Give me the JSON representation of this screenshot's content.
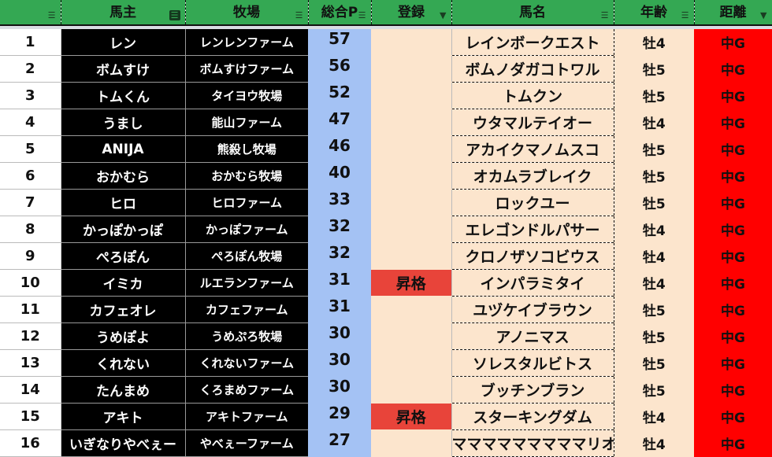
{
  "headers": [
    "",
    "馬主",
    "牧場",
    "総合P",
    "登録",
    "馬名",
    "年齢",
    "距離"
  ],
  "colors": {
    "header": "#34a853",
    "points": "#a4c2f4",
    "peach": "#fce5cd",
    "distance": "#ff0000",
    "promoted": "#e8443a"
  },
  "rows": [
    {
      "n": "1",
      "owner": "レン",
      "farm": "レンレンファーム",
      "pts": "57",
      "reg": "",
      "horse": "レインボークエスト",
      "age": "牡4",
      "dist": "中G"
    },
    {
      "n": "2",
      "owner": "ボムすけ",
      "farm": "ボムすけファーム",
      "pts": "56",
      "reg": "",
      "horse": "ボムノダガコトワル",
      "age": "牡5",
      "dist": "中G"
    },
    {
      "n": "3",
      "owner": "トムくん",
      "farm": "タイヨウ牧場",
      "pts": "52",
      "reg": "",
      "horse": "トムクン",
      "age": "牡5",
      "dist": "中G"
    },
    {
      "n": "4",
      "owner": "うまし",
      "farm": "能山ファーム",
      "pts": "47",
      "reg": "",
      "horse": "ウタマルテイオー",
      "age": "牡4",
      "dist": "中G"
    },
    {
      "n": "5",
      "owner": "ANIJA",
      "farm": "熊殺し牧場",
      "pts": "46",
      "reg": "",
      "horse": "アカイクマノムスコ",
      "age": "牡5",
      "dist": "中G"
    },
    {
      "n": "6",
      "owner": "おかむら",
      "farm": "おかむら牧場",
      "pts": "40",
      "reg": "",
      "horse": "オカムラブレイク",
      "age": "牡5",
      "dist": "中G"
    },
    {
      "n": "7",
      "owner": "ヒロ",
      "farm": "ヒロファーム",
      "pts": "33",
      "reg": "",
      "horse": "ロックユー",
      "age": "牡5",
      "dist": "中G"
    },
    {
      "n": "8",
      "owner": "かっぽかっぽ",
      "farm": "かっぽファーム",
      "pts": "32",
      "reg": "",
      "horse": "エレゴンドルパサー",
      "age": "牡4",
      "dist": "中G"
    },
    {
      "n": "9",
      "owner": "ぺろぽん",
      "farm": "ぺろぽん牧場",
      "pts": "32",
      "reg": "",
      "horse": "クロノザソコビウス",
      "age": "牡4",
      "dist": "中G"
    },
    {
      "n": "10",
      "owner": "イミカ",
      "farm": "ルエランファーム",
      "pts": "31",
      "reg": "昇格",
      "horse": "インパラミタイ",
      "age": "牡4",
      "dist": "中G"
    },
    {
      "n": "11",
      "owner": "カフェオレ",
      "farm": "カフェファーム",
      "pts": "31",
      "reg": "",
      "horse": "ユヅケイブラウン",
      "age": "牡5",
      "dist": "中G"
    },
    {
      "n": "12",
      "owner": "うめぽよ",
      "farm": "うめぷろ牧場",
      "pts": "30",
      "reg": "",
      "horse": "アノニマス",
      "age": "牡5",
      "dist": "中G"
    },
    {
      "n": "13",
      "owner": "くれない",
      "farm": "くれないファーム",
      "pts": "30",
      "reg": "",
      "horse": "ソレスタルビトス",
      "age": "牡5",
      "dist": "中G"
    },
    {
      "n": "14",
      "owner": "たんまめ",
      "farm": "くろまめファーム",
      "pts": "30",
      "reg": "",
      "horse": "ブッチンブラン",
      "age": "牡5",
      "dist": "中G"
    },
    {
      "n": "15",
      "owner": "アキト",
      "farm": "アキトファーム",
      "pts": "29",
      "reg": "昇格",
      "horse": "スターキングダム",
      "age": "牡4",
      "dist": "中G"
    },
    {
      "n": "16",
      "owner": "いぎなりやべぇー",
      "farm": "やべぇーファーム",
      "pts": "27",
      "reg": "",
      "horse": "マママママママママリオ",
      "age": "牡4",
      "dist": "中G"
    }
  ]
}
